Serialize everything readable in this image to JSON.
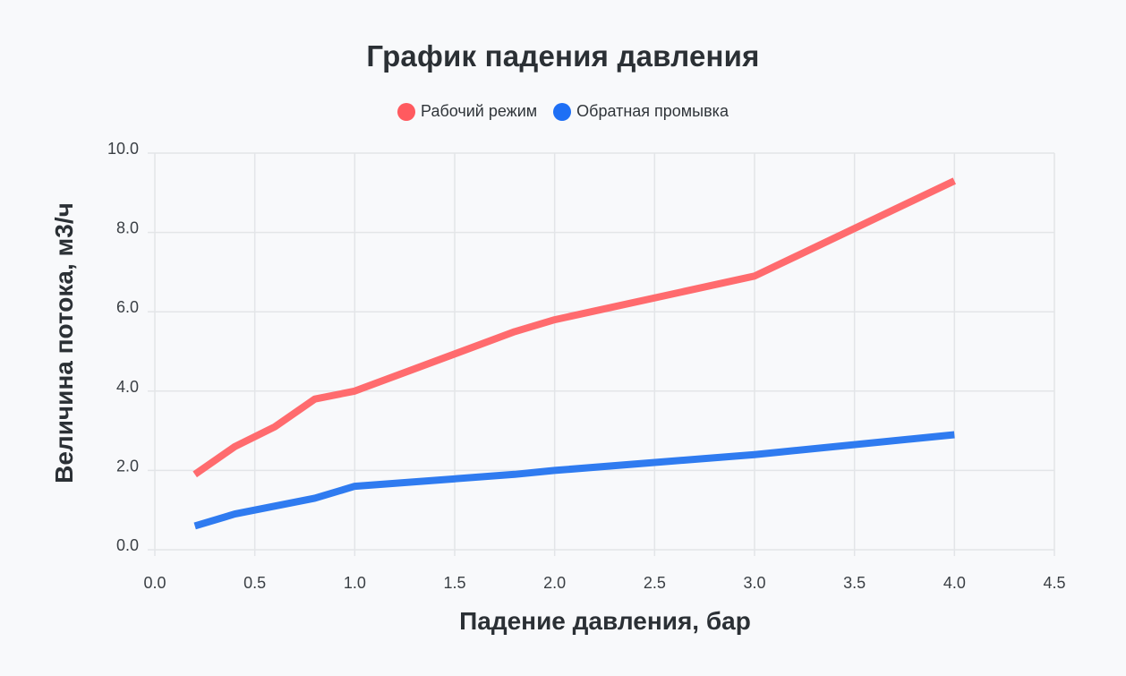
{
  "chart_data": {
    "type": "line",
    "title": "График падения давления",
    "xlabel": "Падение давления, бар",
    "ylabel": "Величина потока, м3/ч",
    "xlim": [
      0,
      4.5
    ],
    "ylim": [
      0,
      10
    ],
    "x_ticks": [
      "0.0",
      "0.5",
      "1.0",
      "1.5",
      "2.0",
      "2.5",
      "3.0",
      "3.5",
      "4.0",
      "4.5"
    ],
    "y_ticks": [
      "0.0",
      "2.0",
      "4.0",
      "6.0",
      "8.0",
      "10.0"
    ],
    "grid": true,
    "legend_position": "top-center",
    "series": [
      {
        "name": "Рабочий режим",
        "color": "#ff6b6e",
        "legend_color": "#ff5a5f",
        "x": [
          0.2,
          0.4,
          0.6,
          0.8,
          1.0,
          1.8,
          2.0,
          3.0,
          4.0
        ],
        "y": [
          1.9,
          2.6,
          3.1,
          3.8,
          4.0,
          5.5,
          5.8,
          6.9,
          9.3
        ]
      },
      {
        "name": "Обратная промывка",
        "color": "#2f7bf0",
        "legend_color": "#1e6ff5",
        "x": [
          0.2,
          0.4,
          0.8,
          1.0,
          1.8,
          2.0,
          3.0,
          4.0
        ],
        "y": [
          0.6,
          0.9,
          1.3,
          1.6,
          1.9,
          2.0,
          2.4,
          2.9
        ]
      }
    ]
  }
}
